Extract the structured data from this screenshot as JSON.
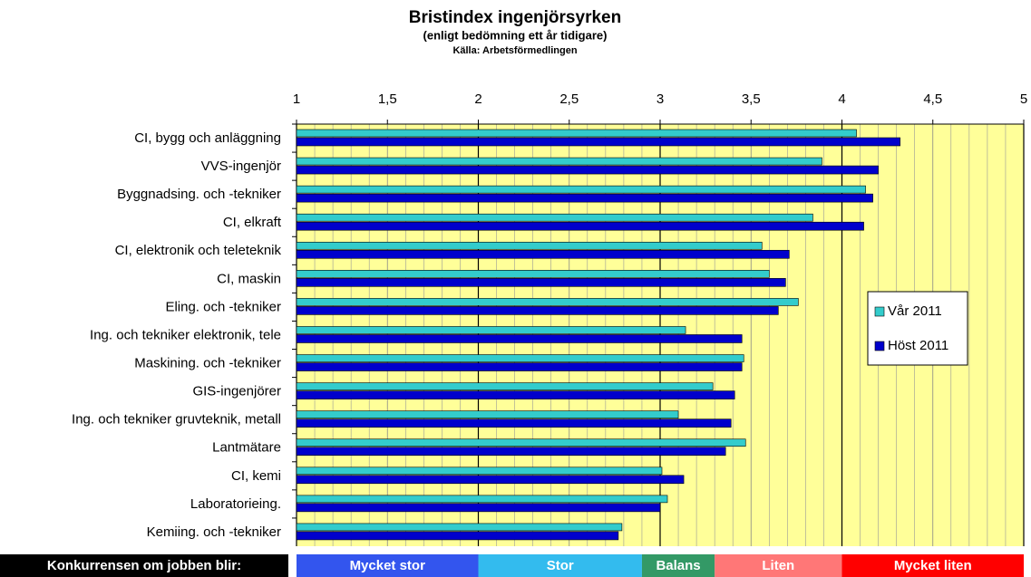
{
  "chart_data": {
    "type": "hbar",
    "title": "Bristindex ingenjörsyrken",
    "subtitle": "(enligt bedömning ett år tidigare)",
    "source": "Källa: Arbetsförmedlingen",
    "categories": [
      "CI, bygg och anläggning",
      "VVS-ingenjör",
      "Byggnadsing. och -tekniker",
      "CI, elkraft",
      "CI, elektronik och teleteknik",
      "CI, maskin",
      "Eling. och -tekniker",
      "Ing. och tekniker elektronik, tele",
      "Maskining. och -tekniker",
      "GIS-ingenjörer",
      "Ing. och tekniker gruvteknik, metall",
      "Lantmätare",
      "CI, kemi",
      "Laboratorieing.",
      "Kemiing. och -tekniker"
    ],
    "series": [
      {
        "name": "Vår 2011",
        "color": "#33cccc",
        "values": [
          4.08,
          3.89,
          4.13,
          3.84,
          3.56,
          3.6,
          3.76,
          3.14,
          3.46,
          3.29,
          3.1,
          3.47,
          3.01,
          3.04,
          2.79
        ]
      },
      {
        "name": "Höst 2011",
        "color": "#0000cc",
        "values": [
          4.32,
          4.2,
          4.17,
          4.12,
          3.71,
          3.69,
          3.65,
          3.45,
          3.45,
          3.41,
          3.39,
          3.36,
          3.13,
          3.0,
          2.77
        ]
      }
    ],
    "xlim": [
      1,
      5
    ],
    "xticks": [
      1,
      {
        "value": 1.5,
        "label": "1,5"
      },
      2,
      {
        "value": 2.5,
        "label": "2,5"
      },
      3,
      {
        "value": 3.5,
        "label": "3,5"
      },
      4,
      {
        "value": 4.5,
        "label": "4,5"
      },
      5
    ],
    "grid": true,
    "legend": "right",
    "zones_label": "Konkurrensen om jobben blir:",
    "zones": [
      {
        "label": "Mycket stor",
        "from": 1,
        "to": 2,
        "color": "#3355ee"
      },
      {
        "label": "Stor",
        "from": 2,
        "to": 2.9,
        "color": "#33bbee"
      },
      {
        "label": "Balans",
        "from": 2.9,
        "to": 3.3,
        "color": "#339966"
      },
      {
        "label": "Liten",
        "from": 3.3,
        "to": 4,
        "color": "#ff7777"
      },
      {
        "label": "Mycket liten",
        "from": 4,
        "to": 5,
        "color": "#ff0000"
      }
    ]
  }
}
